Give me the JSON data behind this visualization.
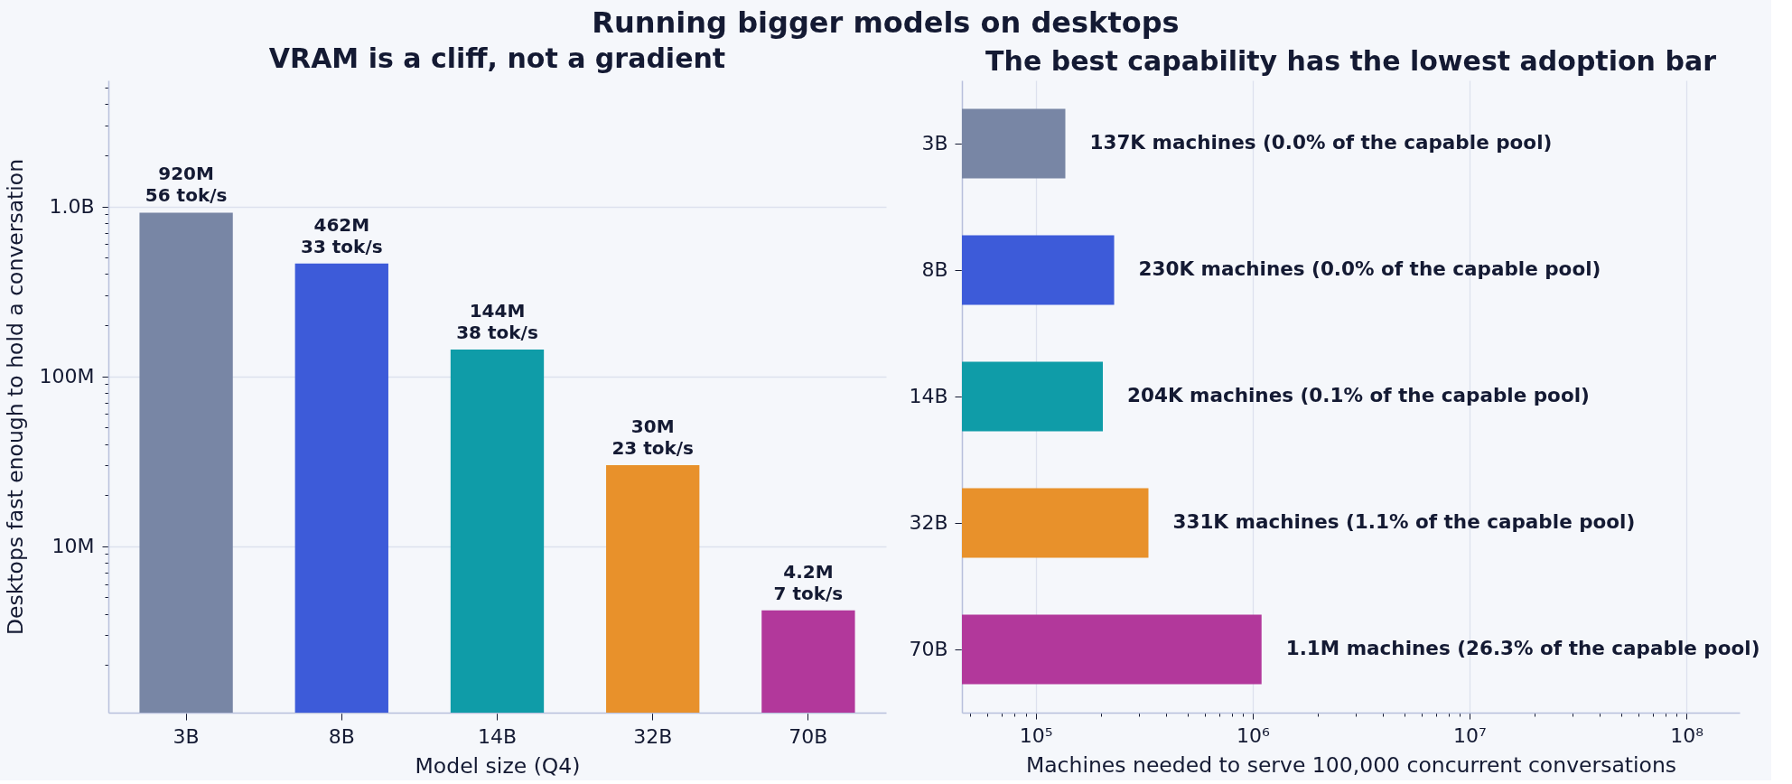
{
  "chart_data": [
    {
      "type": "other",
      "title": "Running bigger models on desktops"
    },
    {
      "type": "bar",
      "title": "VRAM is a cliff, not a gradient",
      "xlabel": "Model size (Q4)",
      "ylabel": "Desktops fast enough to hold a conversation",
      "categories": [
        "3B",
        "8B",
        "14B",
        "32B",
        "70B"
      ],
      "values": [
        920000000,
        462000000,
        144000000,
        30000000,
        4200000
      ],
      "colors": [
        "#7886a5",
        "#3d5bd9",
        "#0f9ca8",
        "#e8912b",
        "#b2389b"
      ],
      "value_labels": [
        "920M\n56 tok/s",
        "462M\n33 tok/s",
        "144M\n38 tok/s",
        "30M\n23 tok/s",
        "4.2M\n7 tok/s"
      ],
      "log": true,
      "ylim": [
        1050000,
        5520000000
      ],
      "yticks": [
        {
          "value": 2000000,
          "label": null
        },
        {
          "value": 3000000,
          "label": null
        },
        {
          "value": 4000000,
          "label": null
        },
        {
          "value": 5000000,
          "label": null
        },
        {
          "value": 6000000,
          "label": null
        },
        {
          "value": 7000000,
          "label": null
        },
        {
          "value": 8000000,
          "label": null
        },
        {
          "value": 9000000,
          "label": null
        },
        {
          "value": 10000000,
          "label": "10M"
        },
        {
          "value": 20000000,
          "label": null
        },
        {
          "value": 30000000,
          "label": null
        },
        {
          "value": 40000000,
          "label": null
        },
        {
          "value": 50000000,
          "label": null
        },
        {
          "value": 60000000,
          "label": null
        },
        {
          "value": 70000000,
          "label": null
        },
        {
          "value": 80000000,
          "label": null
        },
        {
          "value": 90000000,
          "label": null
        },
        {
          "value": 100000000,
          "label": "100M"
        },
        {
          "value": 200000000,
          "label": null
        },
        {
          "value": 300000000,
          "label": null
        },
        {
          "value": 400000000,
          "label": null
        },
        {
          "value": 500000000,
          "label": null
        },
        {
          "value": 600000000,
          "label": null
        },
        {
          "value": 700000000,
          "label": null
        },
        {
          "value": 800000000,
          "label": null
        },
        {
          "value": 900000000,
          "label": null
        },
        {
          "value": 1000000000,
          "label": "1.0B"
        },
        {
          "value": 2000000000,
          "label": null
        },
        {
          "value": 3000000000,
          "label": null
        },
        {
          "value": 4000000000,
          "label": null
        },
        {
          "value": 5000000000,
          "label": null
        }
      ],
      "grid": "y"
    },
    {
      "type": "bar",
      "orientation": "horizontal",
      "title": "The best capability has the lowest adoption bar",
      "xlabel": "Machines needed to serve 100,000 concurrent conversations",
      "categories": [
        "3B",
        "8B",
        "14B",
        "32B",
        "70B"
      ],
      "values": [
        137000,
        230000,
        204000,
        331000,
        1100000
      ],
      "colors": [
        "#7886a5",
        "#3d5bd9",
        "#0f9ca8",
        "#e8912b",
        "#b2389b"
      ],
      "value_labels": [
        "137K machines  (0.0% of the capable pool)",
        "230K machines  (0.0% of the capable pool)",
        "204K machines  (0.1% of the capable pool)",
        "331K machines  (1.1% of the capable pool)",
        "1.1M machines  (26.3% of the capable pool)"
      ],
      "log": "x",
      "xlim": [
        45700,
        176000000
      ],
      "xticks": [
        {
          "value": 50000,
          "label": null
        },
        {
          "value": 60000,
          "label": null
        },
        {
          "value": 70000,
          "label": null
        },
        {
          "value": 80000,
          "label": null
        },
        {
          "value": 90000,
          "label": null
        },
        {
          "value": 100000,
          "label": "10⁵"
        },
        {
          "value": 200000,
          "label": null
        },
        {
          "value": 300000,
          "label": null
        },
        {
          "value": 400000,
          "label": null
        },
        {
          "value": 500000,
          "label": null
        },
        {
          "value": 600000,
          "label": null
        },
        {
          "value": 700000,
          "label": null
        },
        {
          "value": 800000,
          "label": null
        },
        {
          "value": 900000,
          "label": null
        },
        {
          "value": 1000000,
          "label": "10⁶"
        },
        {
          "value": 2000000,
          "label": null
        },
        {
          "value": 3000000,
          "label": null
        },
        {
          "value": 4000000,
          "label": null
        },
        {
          "value": 5000000,
          "label": null
        },
        {
          "value": 6000000,
          "label": null
        },
        {
          "value": 7000000,
          "label": null
        },
        {
          "value": 8000000,
          "label": null
        },
        {
          "value": 9000000,
          "label": null
        },
        {
          "value": 10000000,
          "label": "10⁷"
        },
        {
          "value": 20000000,
          "label": null
        },
        {
          "value": 30000000,
          "label": null
        },
        {
          "value": 40000000,
          "label": null
        },
        {
          "value": 50000000,
          "label": null
        },
        {
          "value": 60000000,
          "label": null
        },
        {
          "value": 70000000,
          "label": null
        },
        {
          "value": 80000000,
          "label": null
        },
        {
          "value": 90000000,
          "label": null
        },
        {
          "value": 100000000,
          "label": "10⁸"
        }
      ],
      "grid": "x"
    }
  ]
}
